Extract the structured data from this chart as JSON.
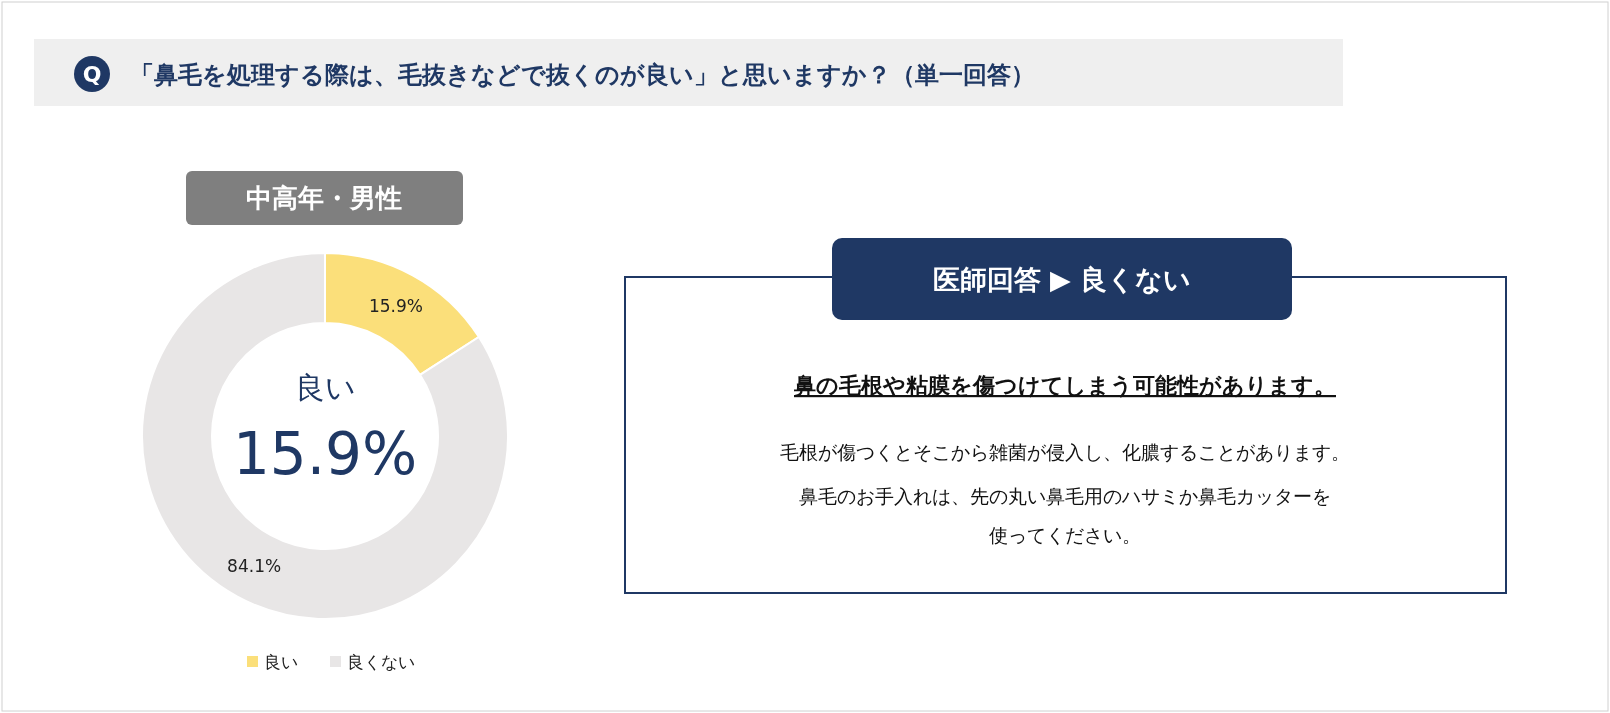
{
  "chart_data": [
    {
      "type": "donut",
      "title": "「鼻毛を処理する際は、毛抜きなどで抜くのが良い」と思いますか？（単一回答）",
      "subtitle": "中高年・男性",
      "categories": [
        "良い",
        "良くない"
      ],
      "values": [
        15.9,
        84.1
      ],
      "colors": [
        "#fbdf7a",
        "#e8e6e6"
      ],
      "value_labels": [
        "15.9%",
        "84.1%"
      ],
      "legend": "bottom",
      "annotations": [
        "Q",
        "良い",
        "15.9%"
      ]
    },
    {
      "type": "other",
      "title": "医師回答 ▶ 良くない",
      "annotations": [
        "鼻の毛根や粘膜を傷つけてしまう可能性があります。",
        "毛根が傷つくとそこから雑菌が侵入し、化膿することがあります。",
        "鼻毛のお手入れは、先の丸い鼻毛用のハサミか鼻毛カッターを",
        "使ってください。"
      ]
    }
  ]
}
